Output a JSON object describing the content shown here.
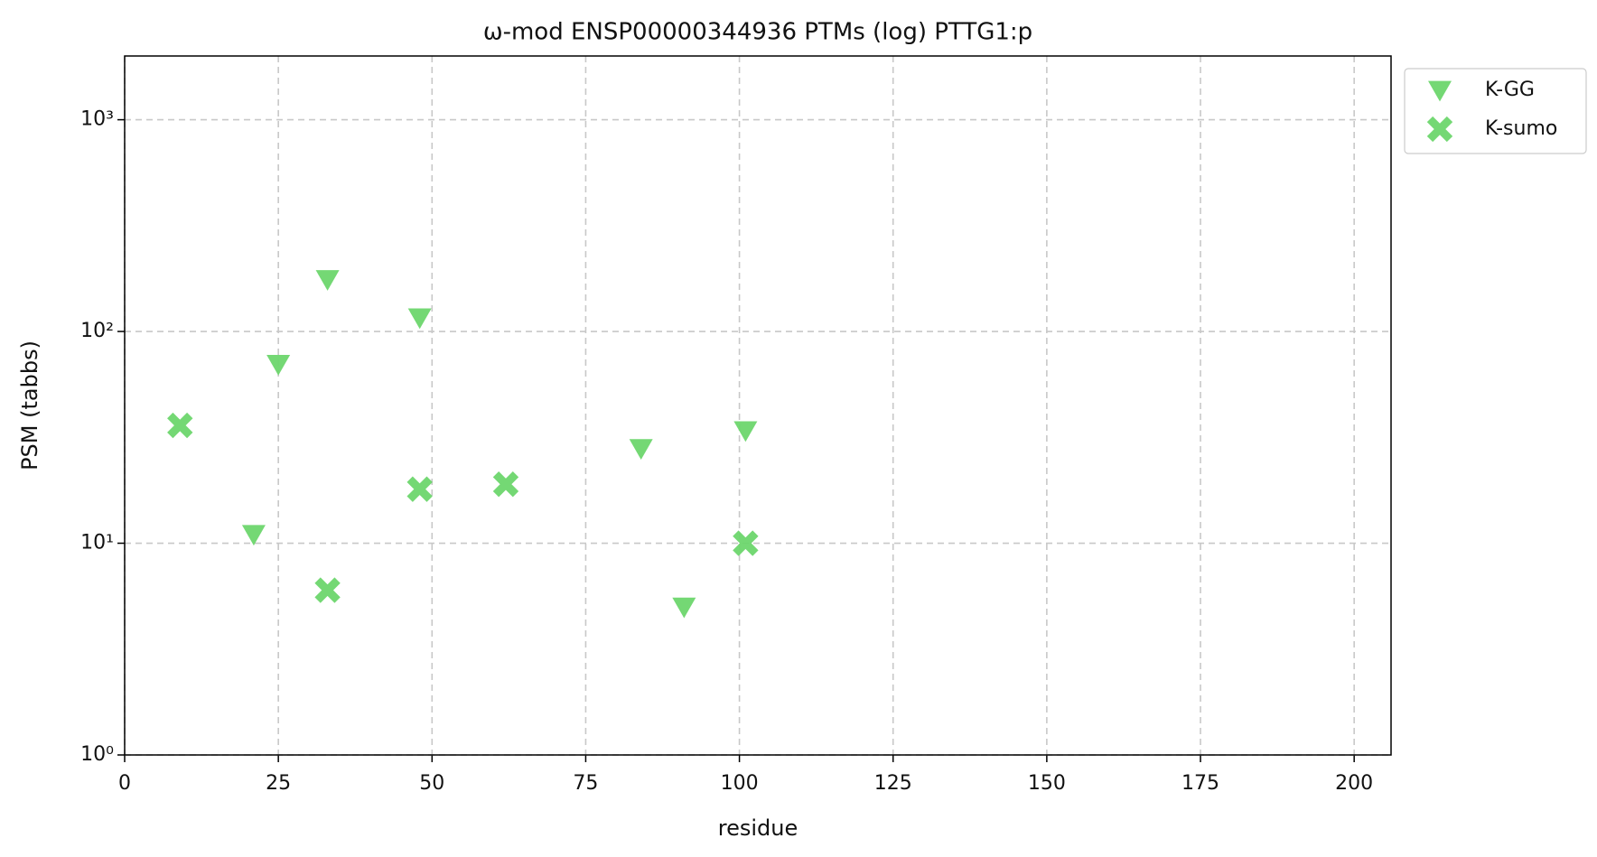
{
  "chart_data": {
    "type": "scatter",
    "title": "ω-mod ENSP00000344936 PTMs (log) PTTG1:p",
    "xlabel": "residue",
    "ylabel": "PSM (tabbs)",
    "xlim": [
      0,
      206
    ],
    "xticks": [
      0,
      25,
      50,
      75,
      100,
      125,
      150,
      175,
      200
    ],
    "ylim": [
      1,
      2000
    ],
    "ylog": true,
    "yticks": [
      {
        "value": 1,
        "label": "10⁰"
      },
      {
        "value": 10,
        "label": "10¹"
      },
      {
        "value": 100,
        "label": "10²"
      },
      {
        "value": 1000,
        "label": "10³"
      }
    ],
    "grid": true,
    "legend": "outside upper right",
    "series": [
      {
        "name": "K-GG",
        "color": "#6dd66d",
        "marker": "triangle-down",
        "x": [
          21,
          25,
          33,
          48,
          84,
          91,
          101
        ],
        "values": [
          11,
          70,
          176,
          116,
          28,
          5,
          34
        ]
      },
      {
        "name": "K-sumo",
        "color": "#6dd66d",
        "marker": "x",
        "x": [
          9,
          33,
          48,
          62,
          101
        ],
        "values": [
          36,
          6,
          18,
          19,
          10
        ]
      }
    ]
  }
}
